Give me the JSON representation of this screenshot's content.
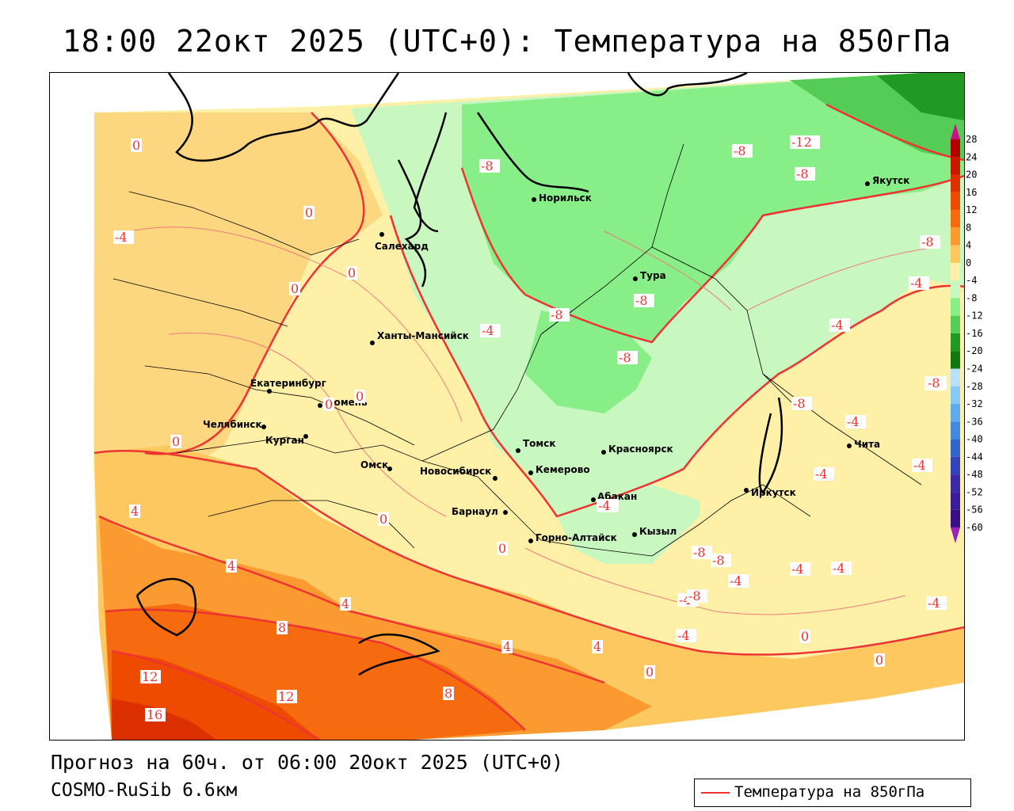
{
  "title": "18:00 22окт 2025 (UTC+0): Температура на 850гПа",
  "forecast_line": "Прогноз на 60ч. от 06:00 20окт 2025 (UTC+0)",
  "model_line": "COSMO-RuSib 6.6км",
  "legend": {
    "label": "Температура на 850гПа",
    "line_color": "#ee3333"
  },
  "colorbar": {
    "ticks": [
      "28",
      "24",
      "20",
      "16",
      "12",
      "8",
      "4",
      "0",
      "-4",
      "-8",
      "-12",
      "-16",
      "-20",
      "-24",
      "-28",
      "-32",
      "-36",
      "-40",
      "-44",
      "-48",
      "-52",
      "-56",
      "-60"
    ],
    "colors": [
      "#b00000",
      "#c81800",
      "#dd3000",
      "#ee4a00",
      "#f66a10",
      "#fa9a30",
      "#fdc860",
      "#fff0a8",
      "#c8f7c0",
      "#88ee88",
      "#55cc55",
      "#229922",
      "#117711",
      "#b8e0f8",
      "#88c8f4",
      "#60aaee",
      "#4488e0",
      "#3366cc",
      "#3344bb",
      "#3a2aa8",
      "#3a1d98",
      "#380f88"
    ],
    "top_arrow_color": "#cc1188",
    "bottom_arrow_color": "#9922bb"
  },
  "cities": [
    {
      "name": "Норильск"
    },
    {
      "name": "Якутск"
    },
    {
      "name": "Салехард"
    },
    {
      "name": "Тура"
    },
    {
      "name": "Ханты-Мансийск"
    },
    {
      "name": "Екатеринбург"
    },
    {
      "name": "Тюмень"
    },
    {
      "name": "Челябинск"
    },
    {
      "name": "Курган"
    },
    {
      "name": "Омск"
    },
    {
      "name": "Новосибирск"
    },
    {
      "name": "Томск"
    },
    {
      "name": "Кемерово"
    },
    {
      "name": "Красноярск"
    },
    {
      "name": "Абакан"
    },
    {
      "name": "Барнаул"
    },
    {
      "name": "Горно-Алтайск"
    },
    {
      "name": "Кызыл"
    },
    {
      "name": "Иркутск"
    },
    {
      "name": "Чита"
    }
  ],
  "isotherm_labels": [
    "0",
    "-4",
    "0",
    "0",
    "0",
    "0",
    "0",
    "0",
    "-4",
    "4",
    "4",
    "0",
    "4",
    "8",
    "12",
    "16",
    "12",
    "8",
    "4",
    "4",
    "0",
    "0",
    "-4",
    "-8",
    "-8",
    "-8",
    "-8",
    "-8",
    "-12",
    "-8",
    "-8",
    "-4",
    "-4",
    "-4",
    "-4",
    "-4",
    "-4",
    "-8",
    "-4",
    "-8",
    "-4",
    "-4",
    "-4",
    "-4",
    "-4",
    "0",
    "0",
    "-4",
    "-8",
    "-8",
    "-8"
  ]
}
